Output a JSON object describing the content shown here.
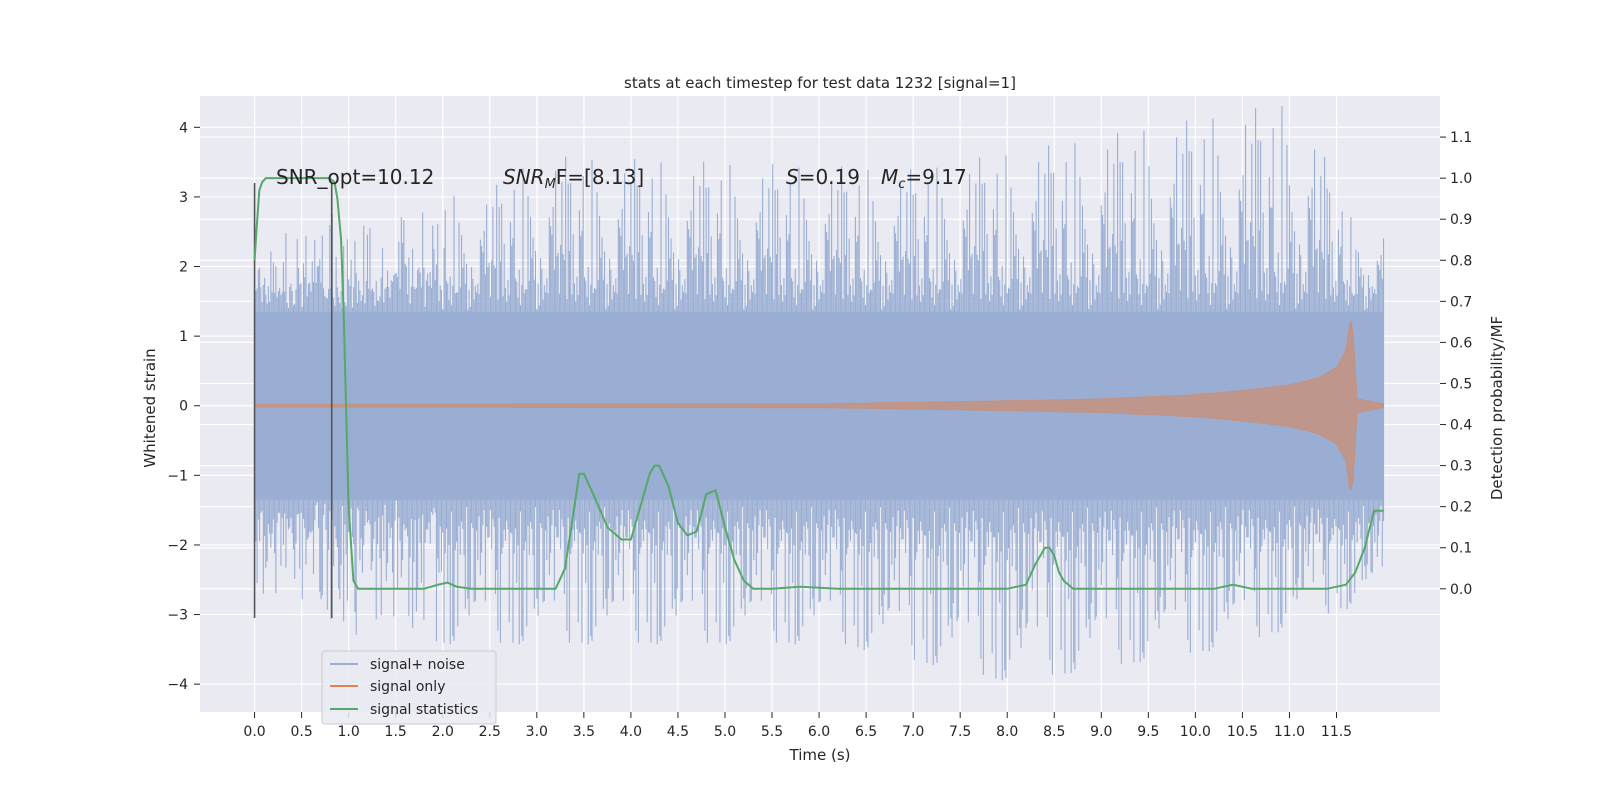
{
  "chart_data": {
    "type": "line",
    "title": "stats at each timestep for test data 1232 [signal=1]",
    "xlabel": "Time (s)",
    "ylabel_left": "Whitened strain",
    "ylabel_right": "Detection probability/MF",
    "xlim": [
      -0.58,
      12.6
    ],
    "ylim_left": [
      -4.4,
      4.45
    ],
    "ylim_right": [
      -0.3,
      1.2
    ],
    "x_ticks": [
      0.0,
      0.5,
      1.0,
      1.5,
      2.0,
      2.5,
      3.0,
      3.5,
      4.0,
      4.5,
      5.0,
      5.5,
      6.0,
      6.5,
      7.0,
      7.5,
      8.0,
      8.5,
      9.0,
      9.5,
      10.0,
      10.5,
      11.0,
      11.5
    ],
    "x_tick_labels": [
      "0.0",
      "0.5",
      "1.0",
      "1.5",
      "2.0",
      "2.5",
      "3.0",
      "3.5",
      "4.0",
      "4.5",
      "5.0",
      "5.5",
      "6.0",
      "6.5",
      "7.0",
      "7.5",
      "8.0",
      "8.5",
      "9.0",
      "9.5",
      "10.0",
      "10.5",
      "11.0",
      "11.5"
    ],
    "y_left_ticks": [
      4,
      3,
      2,
      1,
      0,
      -1,
      -2,
      -3,
      -4
    ],
    "y_left_tick_labels": [
      "4",
      "3",
      "2",
      "1",
      "0",
      "−1",
      "−2",
      "−3",
      "−4"
    ],
    "y_right_ticks": [
      1.1,
      1.0,
      0.9,
      0.8,
      0.7,
      0.6,
      0.5,
      0.4,
      0.3,
      0.2,
      0.1,
      0.0
    ],
    "y_right_tick_labels": [
      "1.1",
      "1.0",
      "0.9",
      "0.8",
      "0.7",
      "0.6",
      "0.5",
      "0.4",
      "0.3",
      "0.2",
      "0.1",
      "0.0"
    ],
    "grid": true,
    "legend_position": "lower-left",
    "series": [
      {
        "name": "signal+ noise",
        "axis": "left",
        "color": "#9aaed3",
        "kind": "noisy strain band",
        "t_range": [
          0.0,
          12.0
        ],
        "core_amplitude": 1.35,
        "spike_max_upper": [
          [
            0.0,
            2.2
          ],
          [
            1.0,
            2.6
          ],
          [
            2.5,
            2.8
          ],
          [
            3.0,
            3.3
          ],
          [
            7.0,
            3.1
          ],
          [
            8.25,
            3.4
          ],
          [
            11.1,
            4.1
          ],
          [
            11.7,
            2.3
          ],
          [
            12.0,
            2.3
          ]
        ],
        "spike_min_lower": [
          [
            0.0,
            -2.6
          ],
          [
            1.5,
            -3.3
          ],
          [
            4.2,
            -3.3
          ],
          [
            6.2,
            -3.3
          ],
          [
            8.05,
            -3.9
          ],
          [
            10.4,
            -3.35
          ],
          [
            11.9,
            -2.6
          ]
        ]
      },
      {
        "name": "signal only",
        "axis": "left",
        "color": "#dd8452",
        "kind": "chirp envelope",
        "envelope": [
          [
            0.0,
            0.02
          ],
          [
            6.0,
            0.03
          ],
          [
            7.5,
            0.06
          ],
          [
            9.0,
            0.1
          ],
          [
            10.0,
            0.16
          ],
          [
            10.5,
            0.22
          ],
          [
            11.0,
            0.3
          ],
          [
            11.3,
            0.4
          ],
          [
            11.5,
            0.55
          ],
          [
            11.6,
            0.8
          ],
          [
            11.65,
            1.3
          ],
          [
            11.68,
            1.0
          ],
          [
            11.72,
            0.1
          ],
          [
            12.0,
            0.03
          ]
        ]
      },
      {
        "name": "signal statistics",
        "axis": "right",
        "color": "#55a868",
        "kind": "line",
        "x": [
          0.0,
          0.02,
          0.05,
          0.08,
          0.12,
          0.2,
          0.3,
          0.5,
          0.7,
          0.8,
          0.85,
          0.88,
          0.92,
          0.95,
          1.0,
          1.05,
          1.1,
          1.3,
          1.8,
          1.95,
          2.05,
          2.15,
          2.3,
          2.7,
          3.0,
          3.2,
          3.3,
          3.4,
          3.45,
          3.5,
          3.6,
          3.75,
          3.9,
          4.0,
          4.1,
          4.2,
          4.25,
          4.3,
          4.4,
          4.5,
          4.6,
          4.7,
          4.8,
          4.9,
          5.0,
          5.1,
          5.2,
          5.3,
          5.5,
          5.8,
          6.2,
          8.0,
          8.2,
          8.3,
          8.4,
          8.45,
          8.5,
          8.55,
          8.6,
          8.7,
          9.0,
          10.2,
          10.4,
          10.6,
          11.0,
          11.4,
          11.6,
          11.7,
          11.8,
          11.9,
          12.0
        ],
        "y": [
          0.8,
          0.87,
          0.97,
          0.99,
          1.0,
          1.0,
          1.0,
          1.0,
          1.0,
          1.0,
          0.99,
          0.95,
          0.85,
          0.65,
          0.2,
          0.02,
          0.0,
          0.0,
          0.0,
          0.01,
          0.015,
          0.005,
          0.0,
          0.0,
          0.0,
          0.0,
          0.05,
          0.2,
          0.28,
          0.28,
          0.23,
          0.15,
          0.12,
          0.12,
          0.2,
          0.28,
          0.3,
          0.3,
          0.25,
          0.16,
          0.13,
          0.14,
          0.23,
          0.24,
          0.15,
          0.07,
          0.02,
          0.0,
          0.0,
          0.005,
          0.0,
          0.0,
          0.01,
          0.06,
          0.1,
          0.1,
          0.08,
          0.04,
          0.02,
          0.0,
          0.0,
          0.0,
          0.01,
          0.0,
          0.0,
          0.0,
          0.01,
          0.04,
          0.1,
          0.19,
          0.19
        ]
      }
    ],
    "vertical_markers": [
      {
        "x": 0.0,
        "y_range": [
          -3.05,
          3.2
        ],
        "color": "#555555"
      },
      {
        "x": 0.82,
        "y_range": [
          -3.05,
          3.2
        ],
        "color": "#555555"
      }
    ],
    "annotations": {
      "snr_opt": "SNR_opt=10.12",
      "snr_mf_name": "SNR",
      "snr_mf_sub": "M",
      "snr_mf_rest": "F=[8.13]",
      "s_name": "S",
      "s_value": "=0.19",
      "mc_name": "M",
      "mc_sub": "c",
      "mc_value": "=9.17"
    }
  }
}
